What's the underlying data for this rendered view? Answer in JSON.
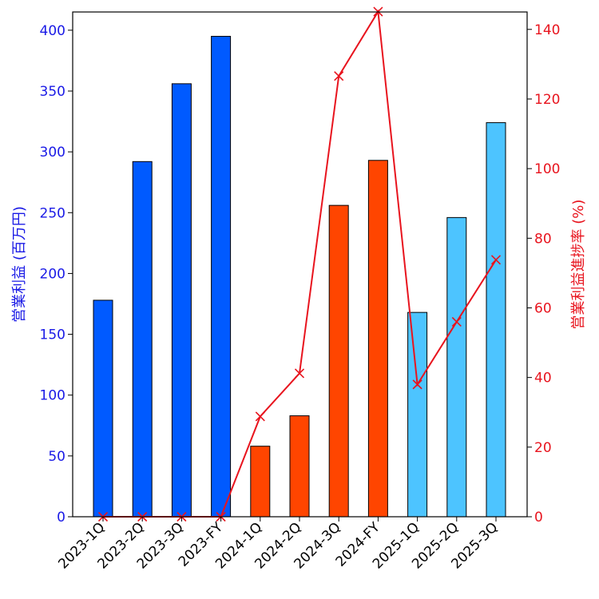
{
  "chart_data": {
    "type": "bar+line",
    "categories": [
      "2023-1Q",
      "2023-2Q",
      "2023-3Q",
      "2023-FY",
      "2024-1Q",
      "2024-2Q",
      "2024-3Q",
      "2024-FY",
      "2025-1Q",
      "2025-2Q",
      "2025-3Q"
    ],
    "bar_series": {
      "name": "営業利益 (百万円)",
      "values": [
        178,
        292,
        356,
        395,
        58,
        83,
        256,
        293,
        168,
        246,
        324
      ],
      "colors": [
        "#005AFF",
        "#005AFF",
        "#005AFF",
        "#005AFF",
        "#FF4500",
        "#FF4500",
        "#FF4500",
        "#FF4500",
        "#4DC4FF",
        "#4DC4FF",
        "#4DC4FF"
      ]
    },
    "line_series": {
      "name": "営業利益進捗率 (%)",
      "values": [
        0,
        0,
        0,
        0,
        28.8,
        41.2,
        126.6,
        145.1,
        38.0,
        56.0,
        73.8
      ],
      "color": "#E8141E",
      "marker": "x"
    },
    "y_left": {
      "label": "営業利益 (百万円)",
      "color": "#1A1AE6",
      "ylim": [
        0,
        415
      ],
      "ticks": [
        0,
        50,
        100,
        150,
        200,
        250,
        300,
        350,
        400
      ]
    },
    "y_right": {
      "label": "営業利益進捗率 (%)",
      "color": "#E8141E",
      "ylim": [
        0,
        145
      ],
      "ticks": [
        0,
        20,
        40,
        60,
        80,
        100,
        120,
        140
      ]
    },
    "title": "",
    "grid": false,
    "legend": "none"
  }
}
